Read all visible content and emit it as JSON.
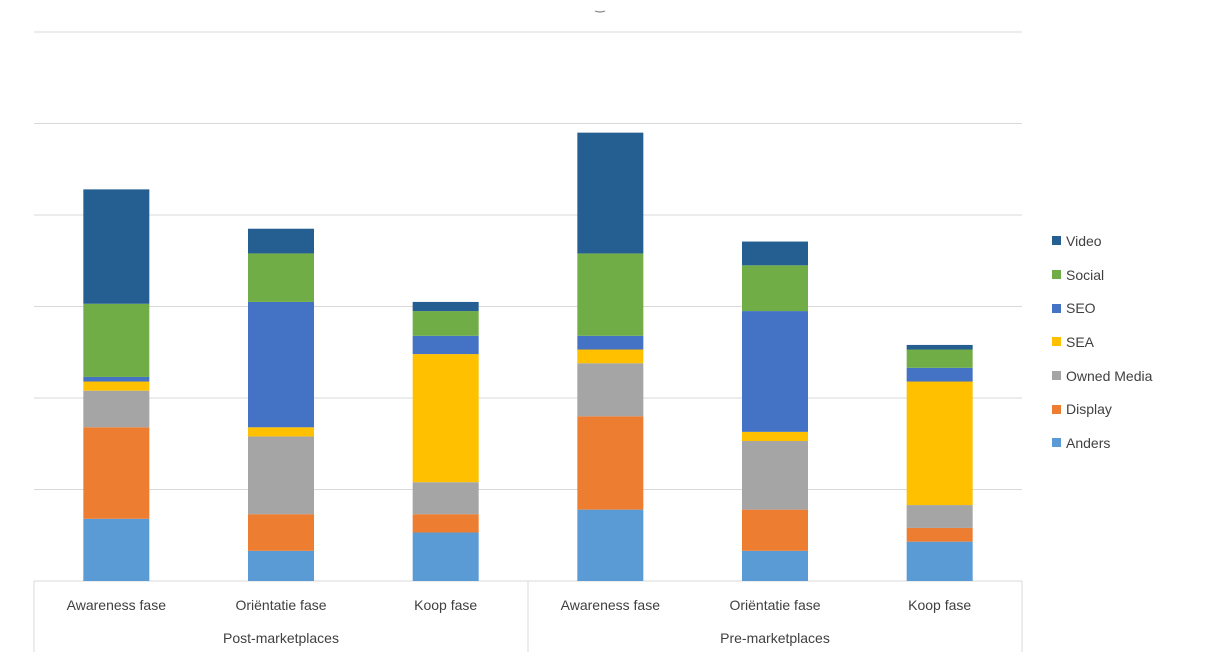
{
  "chart_data": {
    "type": "bar",
    "stacked": true,
    "title": "",
    "xlabel": "",
    "ylabel": "",
    "ylim": [
      0,
      6
    ],
    "grid": true,
    "legend_position": "right",
    "groups": [
      {
        "label": "Post-marketplaces",
        "categories": [
          "Awareness fase",
          "Oriëntatie fase",
          "Koop fase"
        ]
      },
      {
        "label": "Pre-marketplaces",
        "categories": [
          "Awareness fase",
          "Oriëntatie fase",
          "Koop fase"
        ]
      }
    ],
    "categories": [
      "Awareness fase",
      "Oriëntatie fase",
      "Koop fase",
      "Awareness fase",
      "Oriëntatie fase",
      "Koop fase"
    ],
    "series": [
      {
        "name": "Anders",
        "color": "#5B9BD5",
        "values": [
          0.68,
          0.33,
          0.53,
          0.78,
          0.33,
          0.43
        ]
      },
      {
        "name": "Display",
        "color": "#ED7D31",
        "values": [
          1.0,
          0.4,
          0.2,
          1.02,
          0.45,
          0.15
        ]
      },
      {
        "name": "Owned Media",
        "color": "#A5A5A5",
        "values": [
          0.4,
          0.85,
          0.35,
          0.58,
          0.75,
          0.25
        ]
      },
      {
        "name": "SEA",
        "color": "#FFC000",
        "values": [
          0.1,
          0.1,
          1.4,
          0.15,
          0.1,
          1.35
        ]
      },
      {
        "name": "SEO",
        "color": "#4472C4",
        "values": [
          0.05,
          1.37,
          0.2,
          0.15,
          1.32,
          0.15
        ]
      },
      {
        "name": "Social",
        "color": "#70AD47",
        "values": [
          0.8,
          0.53,
          0.27,
          0.9,
          0.5,
          0.2
        ]
      },
      {
        "name": "Video",
        "color": "#255E91",
        "values": [
          1.25,
          0.27,
          0.1,
          1.32,
          0.26,
          0.05
        ]
      }
    ]
  }
}
